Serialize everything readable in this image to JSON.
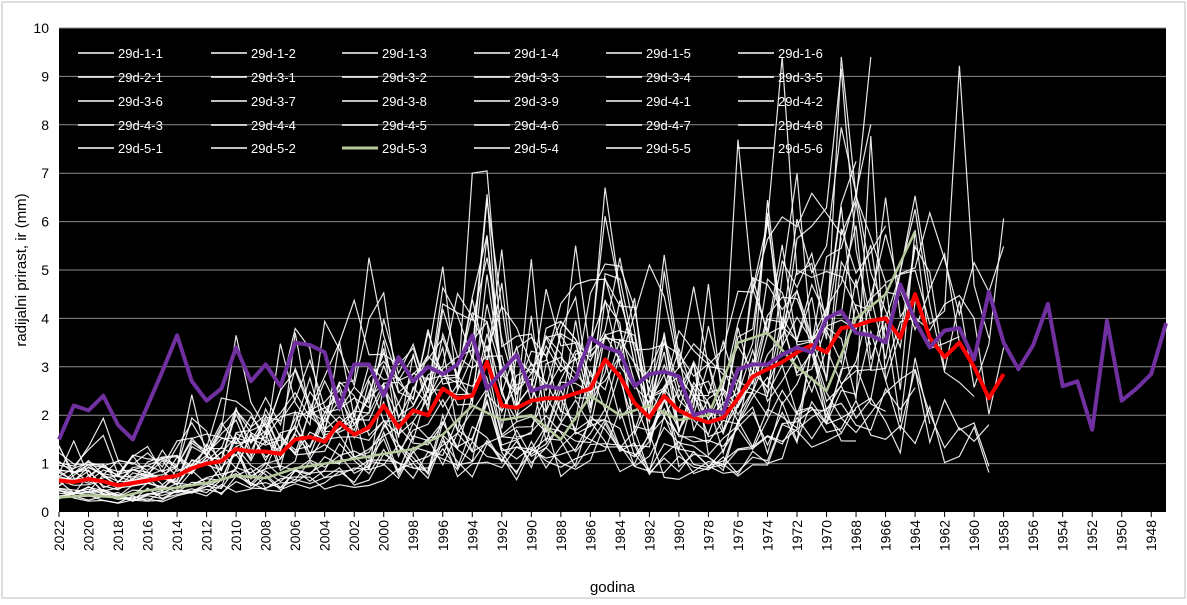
{
  "chart_data": {
    "type": "line",
    "xlabel": "godina",
    "ylabel": "radijalni prirast, ir (mm)",
    "ylim": [
      0,
      10
    ],
    "yticks": [
      "0",
      "1",
      "2",
      "3",
      "4",
      "5",
      "6",
      "7",
      "8",
      "9",
      "10"
    ],
    "xrange": [
      2022,
      1947
    ],
    "xticks": [
      "2022",
      "2020",
      "2018",
      "2016",
      "2014",
      "2012",
      "2010",
      "2008",
      "2006",
      "2004",
      "2002",
      "2000",
      "1998",
      "1996",
      "1994",
      "1992",
      "1990",
      "1988",
      "1986",
      "1984",
      "1982",
      "1980",
      "1978",
      "1976",
      "1974",
      "1972",
      "1970",
      "1968",
      "1966",
      "1964",
      "1962",
      "1960",
      "1958",
      "1956",
      "1954",
      "1952",
      "1950",
      "1948"
    ],
    "background": "#000000",
    "grid": "horizontal",
    "legend_position": "top-left, inside plot area",
    "legend": [
      "29d-1-1",
      "29d-1-2",
      "29d-1-3",
      "29d-1-4",
      "29d-1-5",
      "29d-1-6",
      "29d-2-1",
      "29d-3-1",
      "29d-3-2",
      "29d-3-3",
      "29d-3-4",
      "29d-3-5",
      "29d-3-6",
      "29d-3-7",
      "29d-3-8",
      "29d-3-9",
      "29d-4-1",
      "29d-4-2",
      "29d-4-3",
      "29d-4-4",
      "29d-4-5",
      "29d-4-6",
      "29d-4-7",
      "29d-4-8",
      "29d-5-1",
      "29d-5-2",
      "29d-5-3",
      "29d-5-4",
      "29d-5-5",
      "29d-5-6"
    ],
    "highlight_series": [
      {
        "name": "29d-5-3",
        "color": "#b5c99a",
        "x": [
          2022,
          2020,
          2018,
          2016,
          2014,
          2012,
          2010,
          2008,
          2006,
          2004,
          2002,
          2000,
          1998,
          1996,
          1994,
          1992,
          1990,
          1988,
          1986,
          1984,
          1982,
          1980,
          1978,
          1976,
          1974,
          1972,
          1970,
          1968,
          1966,
          1964
        ],
        "y": [
          0.3,
          0.35,
          0.3,
          0.45,
          0.5,
          0.6,
          0.75,
          0.7,
          0.9,
          1.0,
          1.1,
          1.2,
          1.3,
          1.6,
          2.2,
          1.9,
          2.0,
          1.5,
          2.4,
          2.0,
          2.2,
          1.9,
          2.0,
          3.5,
          3.7,
          3.0,
          2.5,
          4.0,
          4.5,
          5.8
        ]
      }
    ],
    "mean_series": {
      "color": "#ff0000",
      "x": [
        2022,
        2021,
        2020,
        2019,
        2018,
        2017,
        2016,
        2015,
        2014,
        2013,
        2012,
        2011,
        2010,
        2009,
        2008,
        2007,
        2006,
        2005,
        2004,
        2003,
        2002,
        2001,
        2000,
        1999,
        1998,
        1997,
        1996,
        1995,
        1994,
        1993,
        1992,
        1991,
        1990,
        1989,
        1988,
        1987,
        1986,
        1985,
        1984,
        1983,
        1982,
        1981,
        1980,
        1979,
        1978,
        1977,
        1976,
        1975,
        1974,
        1973,
        1972,
        1971,
        1970,
        1969,
        1968,
        1967,
        1966,
        1965,
        1964,
        1963,
        1962,
        1961,
        1960,
        1959,
        1958
      ],
      "y": [
        0.65,
        0.62,
        0.68,
        0.63,
        0.55,
        0.6,
        0.65,
        0.7,
        0.75,
        0.9,
        1.0,
        1.05,
        1.3,
        1.25,
        1.25,
        1.2,
        1.5,
        1.55,
        1.45,
        1.85,
        1.6,
        1.75,
        2.2,
        1.75,
        2.1,
        2.0,
        2.55,
        2.35,
        2.4,
        3.1,
        2.2,
        2.15,
        2.3,
        2.35,
        2.35,
        2.45,
        2.55,
        3.15,
        2.8,
        2.25,
        1.95,
        2.4,
        2.1,
        1.95,
        1.85,
        1.95,
        2.35,
        2.8,
        2.95,
        3.1,
        3.3,
        3.45,
        3.3,
        3.8,
        3.85,
        3.95,
        4.0,
        3.6,
        4.5,
        3.6,
        3.2,
        3.5,
        3.0,
        2.35,
        2.85
      ]
    },
    "index_series": {
      "color": "#7030a0",
      "x": [
        2022,
        2021,
        2020,
        2019,
        2018,
        2017,
        2016,
        2015,
        2014,
        2013,
        2012,
        2011,
        2010,
        2009,
        2008,
        2007,
        2006,
        2005,
        2004,
        2003,
        2002,
        2001,
        2000,
        1999,
        1998,
        1997,
        1996,
        1995,
        1994,
        1993,
        1992,
        1991,
        1990,
        1989,
        1988,
        1987,
        1986,
        1985,
        1984,
        1983,
        1982,
        1981,
        1980,
        1979,
        1978,
        1977,
        1976,
        1975,
        1974,
        1973,
        1972,
        1971,
        1970,
        1969,
        1968,
        1967,
        1966,
        1965,
        1964,
        1963,
        1962,
        1961,
        1960,
        1959,
        1958,
        1957,
        1956,
        1955,
        1954,
        1953,
        1952,
        1951,
        1950,
        1949,
        1948,
        1947
      ],
      "y": [
        1.5,
        2.2,
        2.1,
        2.4,
        1.8,
        1.5,
        2.2,
        2.9,
        3.65,
        2.7,
        2.3,
        2.55,
        3.4,
        2.7,
        3.05,
        2.6,
        3.5,
        3.45,
        3.3,
        2.15,
        3.05,
        3.05,
        2.4,
        3.2,
        2.7,
        3.0,
        2.85,
        3.05,
        3.65,
        2.55,
        2.9,
        3.25,
        2.5,
        2.6,
        2.55,
        2.75,
        3.6,
        3.4,
        3.3,
        2.6,
        2.85,
        2.9,
        2.8,
        2.0,
        2.1,
        2.05,
        2.95,
        3.05,
        3.05,
        3.25,
        3.4,
        3.3,
        4.0,
        4.15,
        3.7,
        3.65,
        3.5,
        4.7,
        3.95,
        3.4,
        3.75,
        3.8,
        3.15,
        4.55,
        3.5,
        2.95,
        3.45,
        4.3,
        2.6,
        2.7,
        1.7,
        3.95,
        2.3,
        2.55,
        2.85,
        3.9
      ]
    }
  }
}
